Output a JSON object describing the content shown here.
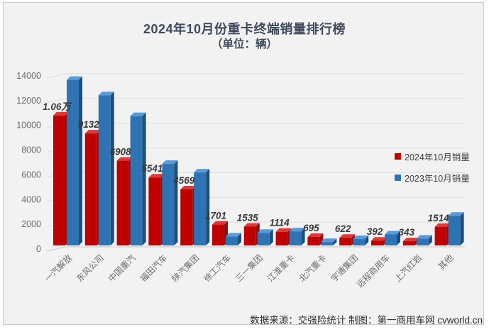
{
  "footer": {
    "text": "数据来源：交强险统计 制图：第一商用车网 cvworld.cn"
  },
  "colors": {
    "panel_bg": "#F2F2F2",
    "grid": "#DBDBDB",
    "baseline": "#C8C8C8",
    "title": "#3F4A5E",
    "axis_text": "#6B6B6B",
    "data_label": "#3A3A3A",
    "red": "#C00000",
    "blue": "#2E74B5"
  },
  "chart_data": {
    "type": "bar",
    "style": "3d-clustered-column",
    "title": "2024年10月份重卡终端销量排行榜",
    "subtitle": "（单位：辆）",
    "unit": "辆",
    "grid": true,
    "legend_position": "right",
    "axis": {
      "min": 0,
      "max": 14000,
      "step": 2000
    },
    "categories": [
      "一汽解放",
      "东风公司",
      "中国重汽",
      "福田汽车",
      "陕汽集团",
      "徐工汽车",
      "三一集团",
      "江淮重卡",
      "北汽重卡",
      "宇通集团",
      "远程商用车",
      "上汽红岩",
      "其他"
    ],
    "series": [
      {
        "name": "2024年10月销量",
        "color": "#C00000",
        "shades": {
          "front": "#C00000",
          "top": "#D83A3A",
          "side": "#8A1111"
        },
        "values": [
          10600,
          9132,
          6908,
          5541,
          4569,
          1701,
          1535,
          1114,
          695,
          622,
          392,
          343,
          1514
        ],
        "labels": [
          "1.06万",
          "9132",
          "6908",
          "5541",
          "4569",
          "1701",
          "1535",
          "1114",
          "695",
          "622",
          "392",
          "343",
          "1514"
        ]
      },
      {
        "name": "2023年10月销量",
        "color": "#2E74B5",
        "shades": {
          "front": "#2E74B5",
          "top": "#5B9BD5",
          "side": "#1F4E79"
        },
        "values": [
          13500,
          12250,
          10550,
          6650,
          5950,
          730,
          1030,
          1150,
          280,
          520,
          900,
          560,
          2420
        ]
      }
    ]
  }
}
